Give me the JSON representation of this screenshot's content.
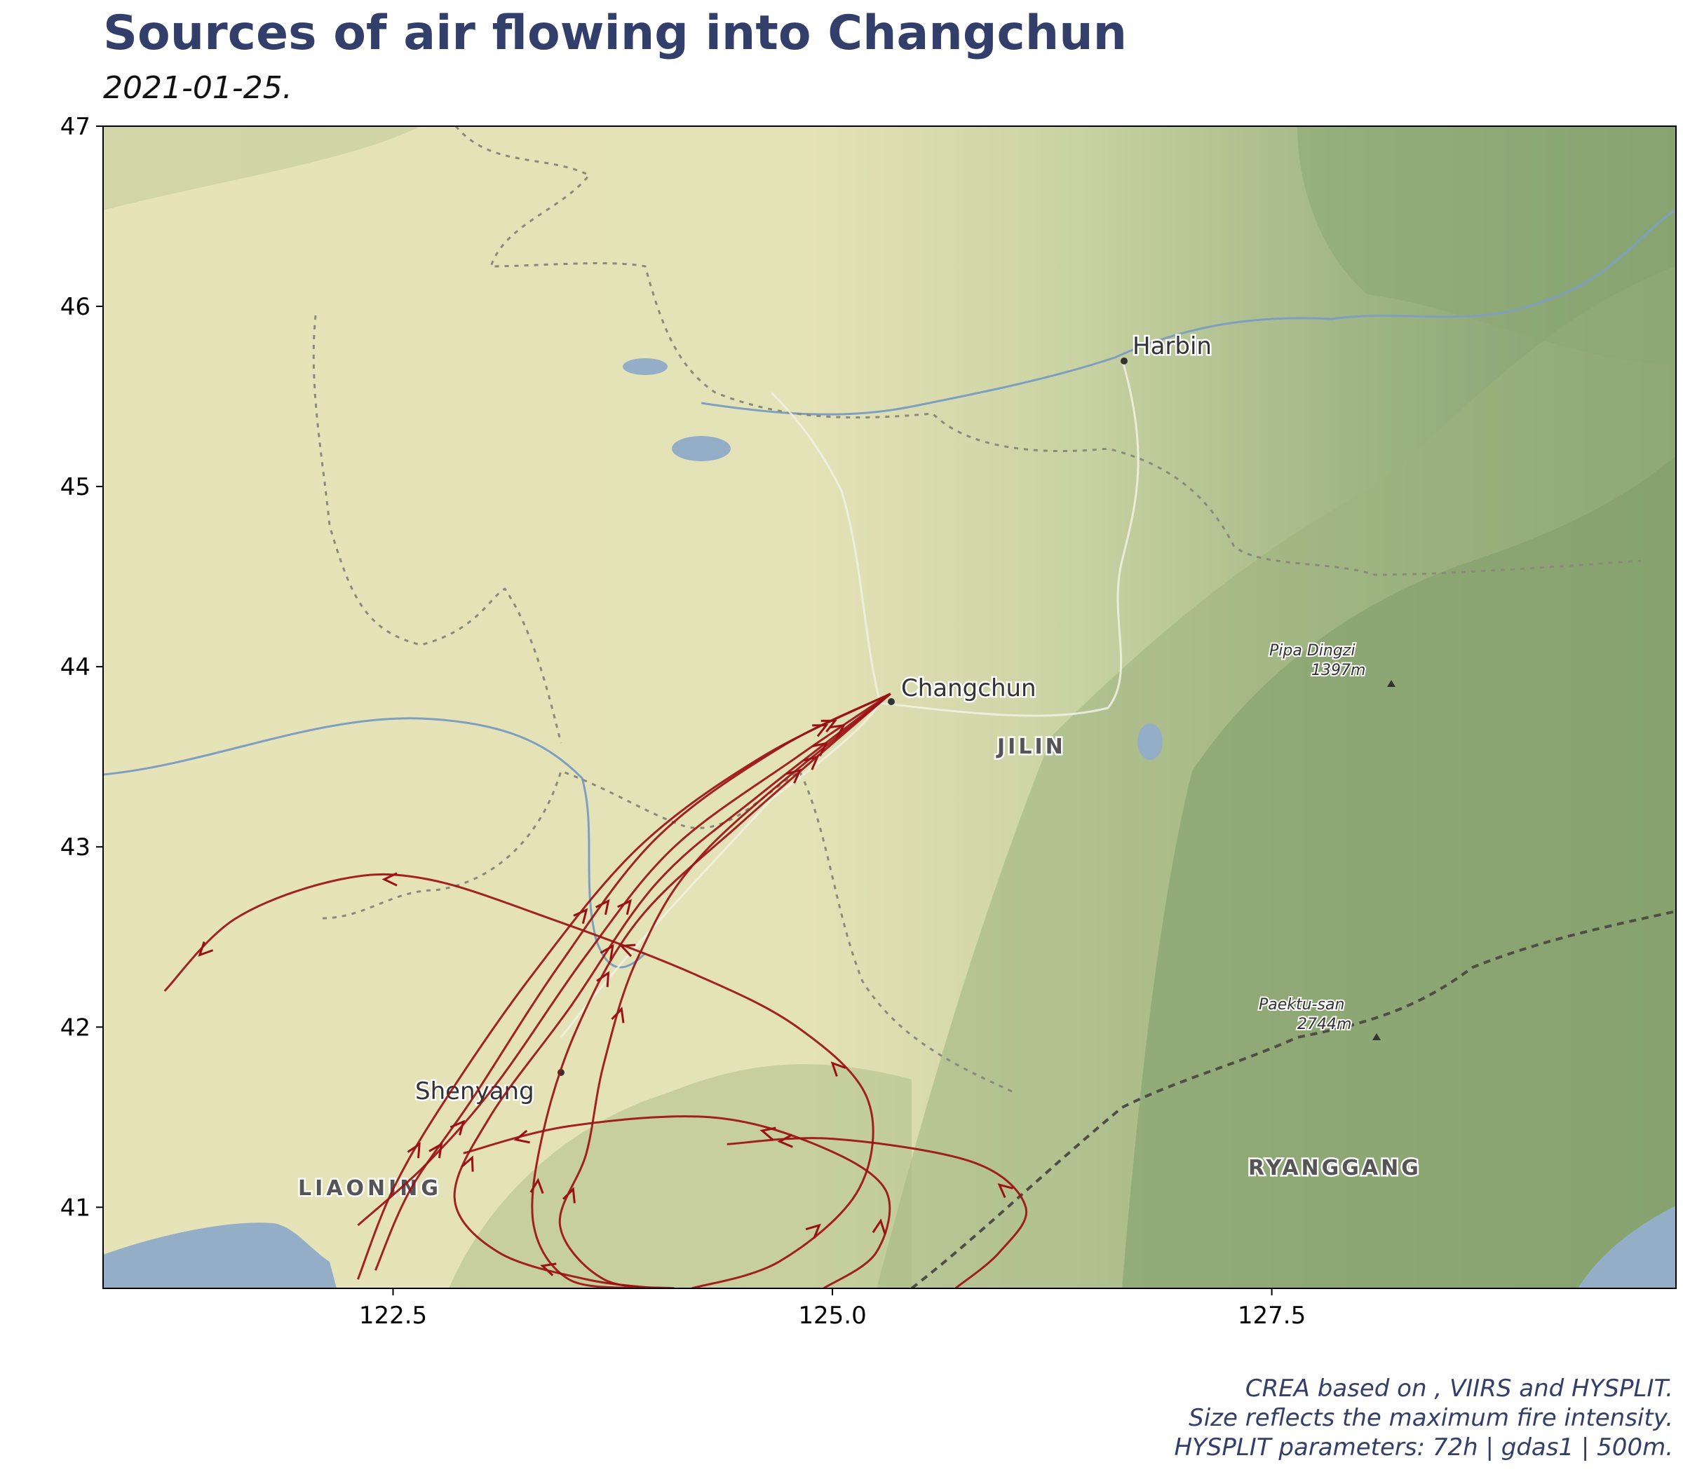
{
  "title": "Sources of air flowing into Changchun",
  "subtitle": "2021-01-25.",
  "caption": {
    "line1": "CREA based on , VIIRS and HYSPLIT.",
    "line2": "Size reflects the maximum fire intensity.",
    "line3": "HYSPLIT parameters: 72h | gdas1 | 500m."
  },
  "axes": {
    "x_ticks": [
      "122.5",
      "125.0",
      "127.5"
    ],
    "y_ticks": [
      "41",
      "42",
      "43",
      "44",
      "45",
      "46",
      "47"
    ],
    "x_range": [
      120.85,
      129.8
    ],
    "y_range": [
      40.55,
      47.0
    ]
  },
  "map_labels": {
    "harbin": "Harbin",
    "changchun": "Changchun",
    "jilin": "JILIN",
    "shenyang": "Shenyang",
    "liaoning": "LIAONING",
    "ryanggang": "RYANGGANG",
    "pipa_name": "Pipa Dingzi",
    "pipa_elev": "1397m",
    "paektu_name": "Paektu-san",
    "paektu_elev": "2744m"
  },
  "trajectory_color": "#9b1111",
  "receptor": {
    "name": "Changchun",
    "lon": 125.33,
    "lat": 43.85
  },
  "trajectories": [
    [
      [
        125.33,
        43.85
      ],
      [
        124.6,
        43.5
      ],
      [
        123.9,
        43.0
      ],
      [
        123.3,
        42.3
      ],
      [
        122.8,
        41.6
      ],
      [
        122.5,
        41.1
      ],
      [
        122.3,
        40.6
      ]
    ],
    [
      [
        125.33,
        43.85
      ],
      [
        124.7,
        43.55
      ],
      [
        124.0,
        43.05
      ],
      [
        123.45,
        42.35
      ],
      [
        122.95,
        41.6
      ],
      [
        122.6,
        41.1
      ],
      [
        122.4,
        40.65
      ]
    ],
    [
      [
        125.33,
        43.85
      ],
      [
        124.8,
        43.5
      ],
      [
        124.1,
        43.0
      ],
      [
        123.6,
        42.4
      ],
      [
        123.1,
        41.7
      ],
      [
        122.7,
        41.25
      ],
      [
        122.3,
        40.9
      ]
    ],
    [
      [
        125.33,
        43.85
      ],
      [
        124.6,
        43.3
      ],
      [
        124.0,
        42.8
      ],
      [
        123.5,
        42.1
      ],
      [
        123.05,
        41.5
      ],
      [
        122.85,
        41.05
      ],
      [
        123.1,
        40.75
      ],
      [
        123.6,
        40.6
      ],
      [
        124.0,
        40.55
      ]
    ],
    [
      [
        125.33,
        43.85
      ],
      [
        124.5,
        43.15
      ],
      [
        123.9,
        42.6
      ],
      [
        123.55,
        42.0
      ],
      [
        123.35,
        41.4
      ],
      [
        123.3,
        40.9
      ],
      [
        123.5,
        40.6
      ],
      [
        123.9,
        40.55
      ]
    ],
    [
      [
        125.33,
        43.85
      ],
      [
        124.3,
        43.0
      ],
      [
        123.9,
        42.4
      ],
      [
        123.7,
        41.8
      ],
      [
        123.6,
        41.3
      ],
      [
        123.45,
        40.9
      ],
      [
        123.7,
        40.6
      ],
      [
        124.1,
        40.55
      ]
    ],
    [
      [
        121.2,
        42.2
      ],
      [
        121.6,
        42.6
      ],
      [
        122.2,
        42.82
      ],
      [
        122.7,
        42.82
      ],
      [
        123.4,
        42.6
      ],
      [
        124.2,
        42.3
      ],
      [
        124.8,
        42.0
      ],
      [
        125.2,
        41.6
      ],
      [
        125.15,
        41.1
      ],
      [
        124.7,
        40.7
      ],
      [
        124.2,
        40.55
      ]
    ],
    [
      [
        122.9,
        41.3
      ],
      [
        123.5,
        41.45
      ],
      [
        124.3,
        41.5
      ],
      [
        124.9,
        41.35
      ],
      [
        125.3,
        41.1
      ],
      [
        125.25,
        40.75
      ],
      [
        124.95,
        40.55
      ]
    ],
    [
      [
        124.4,
        41.35
      ],
      [
        125.0,
        41.38
      ],
      [
        125.8,
        41.25
      ],
      [
        126.1,
        41.0
      ],
      [
        125.95,
        40.75
      ],
      [
        125.7,
        40.55
      ]
    ]
  ]
}
